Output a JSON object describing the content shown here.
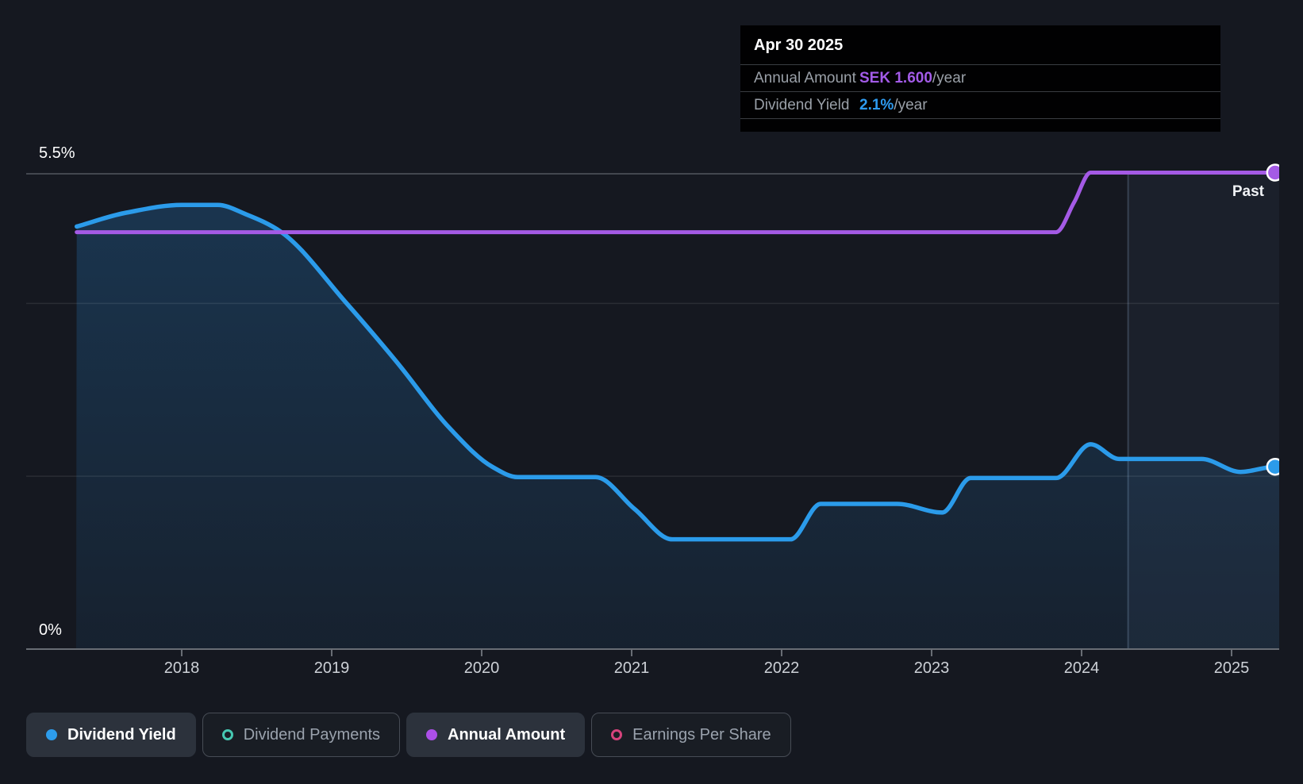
{
  "tooltip": {
    "date": "Apr 30 2025",
    "rows": [
      {
        "label": "Annual Amount",
        "value": "SEK 1.600",
        "suffix": "/year",
        "value_color": "#A35BE8"
      },
      {
        "label": "Dividend Yield",
        "value": "2.1%",
        "suffix": "/year",
        "value_color": "#2E9BF0"
      }
    ]
  },
  "axis": {
    "y_top_label": "5.5%",
    "y_bottom_label": "0%"
  },
  "past_label": "Past",
  "legend": [
    {
      "label": "Dividend Yield",
      "marker": "filled",
      "color": "#2D9CEB",
      "active": true
    },
    {
      "label": "Dividend Payments",
      "marker": "hollow",
      "color": "#46C8B2",
      "active": false
    },
    {
      "label": "Annual Amount",
      "marker": "filled",
      "color": "#AC4FE8",
      "active": true
    },
    {
      "label": "Earnings Per Share",
      "marker": "hollow",
      "color": "#D6437C",
      "active": false
    }
  ],
  "chart_data": {
    "type": "area",
    "title": "Dividend history",
    "x_ticks": [
      2018,
      2019,
      2020,
      2021,
      2022,
      2023,
      2024,
      2025
    ],
    "xlim": [
      2017.3,
      2025.31
    ],
    "ylim": [
      0,
      5.5
    ],
    "y_gridlines_pct": [
      5.5,
      4.0,
      2.0,
      0.0
    ],
    "annual_amount_axis_max_sek": 1.6,
    "past_divider_x": 2024.31,
    "legend_position": "bottom",
    "series": [
      {
        "name": "Dividend Yield",
        "unit": "%",
        "color": "#2B9BEA",
        "area_fill": true,
        "end_marker": true,
        "points": [
          [
            2017.3,
            4.89
          ],
          [
            2017.63,
            5.05
          ],
          [
            2018.0,
            5.14
          ],
          [
            2018.24,
            5.14
          ],
          [
            2018.43,
            5.03
          ],
          [
            2018.66,
            4.83
          ],
          [
            2019.1,
            4.0
          ],
          [
            2019.43,
            3.33
          ],
          [
            2019.79,
            2.55
          ],
          [
            2020.07,
            2.11
          ],
          [
            2020.24,
            1.99
          ],
          [
            2020.76,
            1.99
          ],
          [
            2021.02,
            1.62
          ],
          [
            2021.27,
            1.27
          ],
          [
            2022.06,
            1.27
          ],
          [
            2022.26,
            1.68
          ],
          [
            2022.77,
            1.68
          ],
          [
            2023.07,
            1.58
          ],
          [
            2023.26,
            1.98
          ],
          [
            2023.83,
            1.98
          ],
          [
            2024.06,
            2.37
          ],
          [
            2024.25,
            2.2
          ],
          [
            2024.8,
            2.2
          ],
          [
            2025.06,
            2.05
          ],
          [
            2025.29,
            2.11
          ]
        ]
      },
      {
        "name": "Annual Amount",
        "unit": "SEK",
        "color": "#A45AE5",
        "area_fill": false,
        "end_marker": true,
        "points": [
          [
            2017.3,
            1.4
          ],
          [
            2023.83,
            1.4
          ],
          [
            2023.95,
            1.5
          ],
          [
            2024.06,
            1.6
          ],
          [
            2025.29,
            1.6
          ]
        ]
      }
    ]
  }
}
